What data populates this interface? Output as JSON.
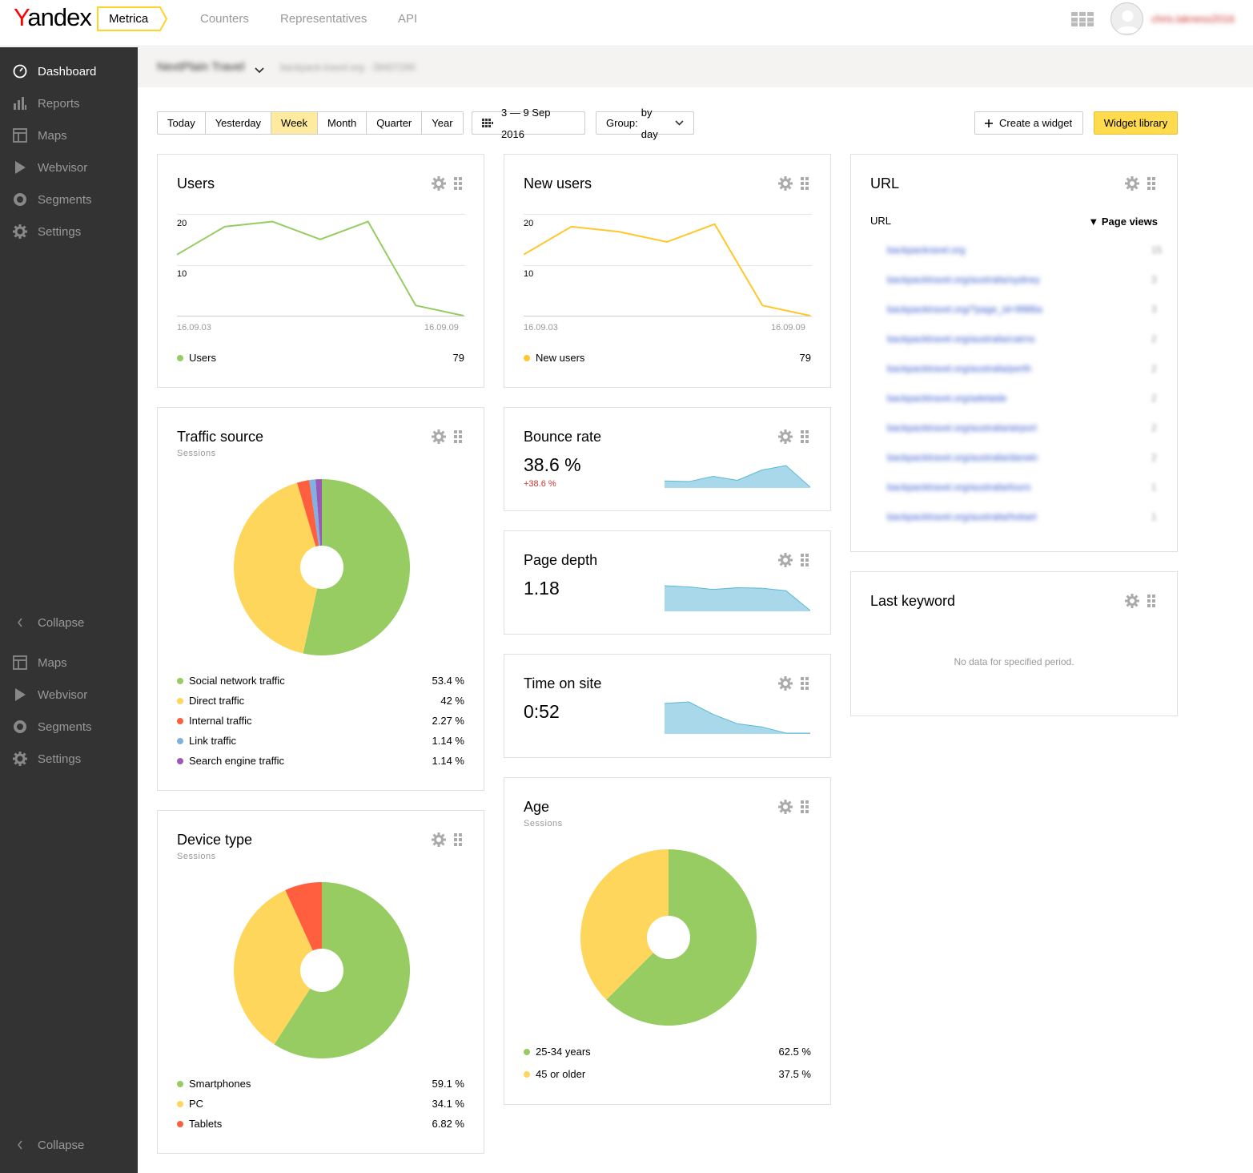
{
  "header": {
    "logo": "Yandex",
    "logo_first": "Y",
    "logo_rest": "andex",
    "product": "Metrica",
    "nav": [
      "Counters",
      "Representatives",
      "API"
    ],
    "username": "chris.lakness2016"
  },
  "sidebar": {
    "items": [
      {
        "label": "Dashboard",
        "icon": "dashboard-icon",
        "active": true
      },
      {
        "label": "Reports",
        "icon": "reports-icon"
      },
      {
        "label": "Maps",
        "icon": "maps-icon"
      },
      {
        "label": "Webvisor",
        "icon": "play-icon"
      },
      {
        "label": "Segments",
        "icon": "segments-icon"
      },
      {
        "label": "Settings",
        "icon": "gear-icon"
      }
    ],
    "collapse_label": "Collapse",
    "lower_items": [
      {
        "label": "Maps",
        "icon": "maps-icon"
      },
      {
        "label": "Webvisor",
        "icon": "play-icon"
      },
      {
        "label": "Segments",
        "icon": "segments-icon"
      },
      {
        "label": "Settings",
        "icon": "gear-icon"
      }
    ]
  },
  "subheader": {
    "counter_name": "NextPlain Travel",
    "counter_url": "backpack-travel.org · 39407290"
  },
  "toolbar": {
    "periods": [
      "Today",
      "Yesterday",
      "Week",
      "Month",
      "Quarter",
      "Year"
    ],
    "selected_period": "Week",
    "date_range": "3 — 9 Sep 2016",
    "group_label": "Group:",
    "group_value": "by day",
    "create_widget": "Create a widget",
    "widget_library": "Widget library"
  },
  "colors": {
    "green": "#96cc62",
    "yellow": "#ffd65c",
    "red": "#ff5f3f",
    "blue": "#7fb1e3",
    "purple": "#9b59b6",
    "spark": "#a8d8ea",
    "spark_line": "#5ab8d6",
    "accent": "#ffdb4d"
  },
  "widgets": {
    "users": {
      "title": "Users",
      "y_ticks": [
        "20",
        "10"
      ],
      "x_start": "16.09.03",
      "x_end": "16.09.09",
      "legend_label": "Users",
      "legend_value": "79"
    },
    "new_users": {
      "title": "New users",
      "y_ticks": [
        "20",
        "10"
      ],
      "x_start": "16.09.03",
      "x_end": "16.09.09",
      "legend_label": "New users",
      "legend_value": "79"
    },
    "url": {
      "title": "URL",
      "col_url": "URL",
      "col_views": "Page views",
      "sort_marker": "▼",
      "rows": [
        {
          "url": "backpackravel.org",
          "views": "15"
        },
        {
          "url": "backpacktravel.org/australia/sydney",
          "views": "3"
        },
        {
          "url": "backpacktravel.org/?page_id=9986a",
          "views": "3"
        },
        {
          "url": "backpacktravel.org/australia/cairns",
          "views": "2"
        },
        {
          "url": "backpacktravel.org/australia/perth",
          "views": "2"
        },
        {
          "url": "backpacktravel.org/adelaide",
          "views": "2"
        },
        {
          "url": "backpacktravel.org/australia/airport",
          "views": "2"
        },
        {
          "url": "backpacktravel.org/australia/darwin",
          "views": "2"
        },
        {
          "url": "backpacktravel.org/australia/tours",
          "views": "1"
        },
        {
          "url": "backpacktravel.org/australia/hobart",
          "views": "1"
        }
      ]
    },
    "traffic_source": {
      "title": "Traffic source",
      "subtitle": "Sessions",
      "items": [
        {
          "label": "Social network traffic",
          "value": "53.4 %",
          "pct": 53.4,
          "color": "#96cc62"
        },
        {
          "label": "Direct traffic",
          "value": "42 %",
          "pct": 42,
          "color": "#ffd65c"
        },
        {
          "label": "Internal traffic",
          "value": "2.27 %",
          "pct": 2.27,
          "color": "#ff5f3f"
        },
        {
          "label": "Link traffic",
          "value": "1.14 %",
          "pct": 1.14,
          "color": "#7fb1e3"
        },
        {
          "label": "Search engine traffic",
          "value": "1.14 %",
          "pct": 1.14,
          "color": "#9b59b6"
        }
      ]
    },
    "bounce_rate": {
      "title": "Bounce rate",
      "value": "38.6 %",
      "delta": "+38.6 %"
    },
    "page_depth": {
      "title": "Page depth",
      "value": "1.18"
    },
    "time_on_site": {
      "title": "Time on site",
      "value": "0:52"
    },
    "last_keyword": {
      "title": "Last keyword",
      "empty": "No data for specified period."
    },
    "device_type": {
      "title": "Device type",
      "subtitle": "Sessions",
      "items": [
        {
          "label": "Smartphones",
          "value": "59.1 %",
          "pct": 59.1,
          "color": "#96cc62"
        },
        {
          "label": "PC",
          "value": "34.1 %",
          "pct": 34.1,
          "color": "#ffd65c"
        },
        {
          "label": "Tablets",
          "value": "6.82 %",
          "pct": 6.82,
          "color": "#ff5f3f"
        }
      ]
    },
    "age": {
      "title": "Age",
      "subtitle": "Sessions",
      "items": [
        {
          "label": "25-34 years",
          "value": "62.5 %",
          "pct": 62.5,
          "color": "#96cc62"
        },
        {
          "label": "45 or older",
          "value": "37.5 %",
          "pct": 37.5,
          "color": "#ffd65c"
        }
      ]
    }
  },
  "chart_data": [
    {
      "type": "line",
      "title": "Users",
      "x": [
        "16.09.03",
        "16.09.04",
        "16.09.05",
        "16.09.06",
        "16.09.07",
        "16.09.08",
        "16.09.09"
      ],
      "series": [
        {
          "name": "Users",
          "values": [
            12,
            17.5,
            18.5,
            15,
            18.5,
            2,
            0
          ]
        }
      ],
      "ylim": [
        0,
        20
      ]
    },
    {
      "type": "line",
      "title": "New users",
      "x": [
        "16.09.03",
        "16.09.04",
        "16.09.05",
        "16.09.06",
        "16.09.07",
        "16.09.08",
        "16.09.09"
      ],
      "series": [
        {
          "name": "New users",
          "values": [
            12,
            17.5,
            16.5,
            14.5,
            18,
            2,
            0
          ]
        }
      ],
      "ylim": [
        0,
        20
      ]
    },
    {
      "type": "area",
      "title": "Bounce rate",
      "values": [
        20,
        18,
        35,
        22,
        55,
        70,
        0
      ]
    },
    {
      "type": "area",
      "title": "Page depth",
      "values": [
        100,
        95,
        85,
        92,
        90,
        80,
        0
      ]
    },
    {
      "type": "area",
      "title": "Time on site",
      "values": [
        95,
        100,
        60,
        30,
        20,
        0,
        0
      ]
    },
    {
      "type": "pie",
      "title": "Traffic source",
      "categories": [
        "Social network traffic",
        "Direct traffic",
        "Internal traffic",
        "Link traffic",
        "Search engine traffic"
      ],
      "values": [
        53.4,
        42,
        2.27,
        1.14,
        1.14
      ]
    },
    {
      "type": "pie",
      "title": "Device type",
      "categories": [
        "Smartphones",
        "PC",
        "Tablets"
      ],
      "values": [
        59.1,
        34.1,
        6.82
      ]
    },
    {
      "type": "pie",
      "title": "Age",
      "categories": [
        "25-34 years",
        "45 or older"
      ],
      "values": [
        62.5,
        37.5
      ]
    }
  ]
}
